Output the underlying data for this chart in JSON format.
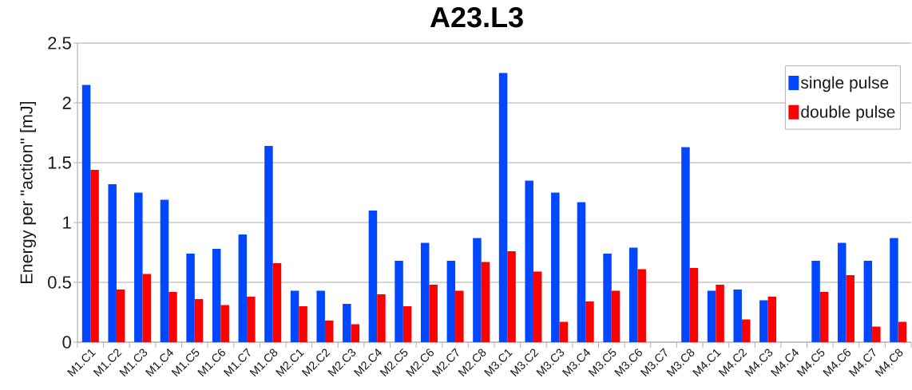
{
  "chart_data": {
    "type": "bar",
    "title": "A23.L3",
    "ylabel": "Energy per \"action\" [mJ]",
    "categories": [
      "M1.C1",
      "M1.C2",
      "M1.C3",
      "M1.C4",
      "M1.C5",
      "M1.C6",
      "M1.C7",
      "M1.C8",
      "M2.C1",
      "M2.C2",
      "M2.C3",
      "M2.C4",
      "M2.C5",
      "M2.C6",
      "M2.C7",
      "M2.C8",
      "M3.C1",
      "M3.C2",
      "M3.C3",
      "M3.C4",
      "M3.C5",
      "M3.C6",
      "M3.C7",
      "M3.C8",
      "M4.C1",
      "M4.C2",
      "M4.C3",
      "M4.C4",
      "M4.C5",
      "M4.C6",
      "M4.C7",
      "M4.C8"
    ],
    "series": [
      {
        "name": "single pulse",
        "color": "#0047ff",
        "values": [
          2.15,
          1.32,
          1.25,
          1.19,
          0.74,
          0.78,
          0.9,
          1.64,
          0.43,
          0.43,
          0.32,
          1.1,
          0.68,
          0.83,
          0.68,
          0.87,
          2.25,
          1.35,
          1.25,
          1.17,
          0.74,
          0.79,
          null,
          1.63,
          0.43,
          0.44,
          0.35,
          null,
          0.68,
          0.83,
          0.68,
          0.87
        ]
      },
      {
        "name": "double pulse",
        "color": "#ff0000",
        "values": [
          1.44,
          0.44,
          0.57,
          0.42,
          0.36,
          0.31,
          0.38,
          0.66,
          0.3,
          0.18,
          0.15,
          0.4,
          0.3,
          0.48,
          0.43,
          0.67,
          0.76,
          0.59,
          0.17,
          0.34,
          0.43,
          0.61,
          null,
          0.62,
          0.48,
          0.19,
          0.38,
          null,
          0.42,
          0.56,
          0.13,
          0.17
        ]
      }
    ],
    "ylim": [
      0,
      2.5
    ],
    "yticks": [
      0,
      0.5,
      1,
      1.5,
      2,
      2.5
    ],
    "grid": "y",
    "legend": "top right"
  }
}
